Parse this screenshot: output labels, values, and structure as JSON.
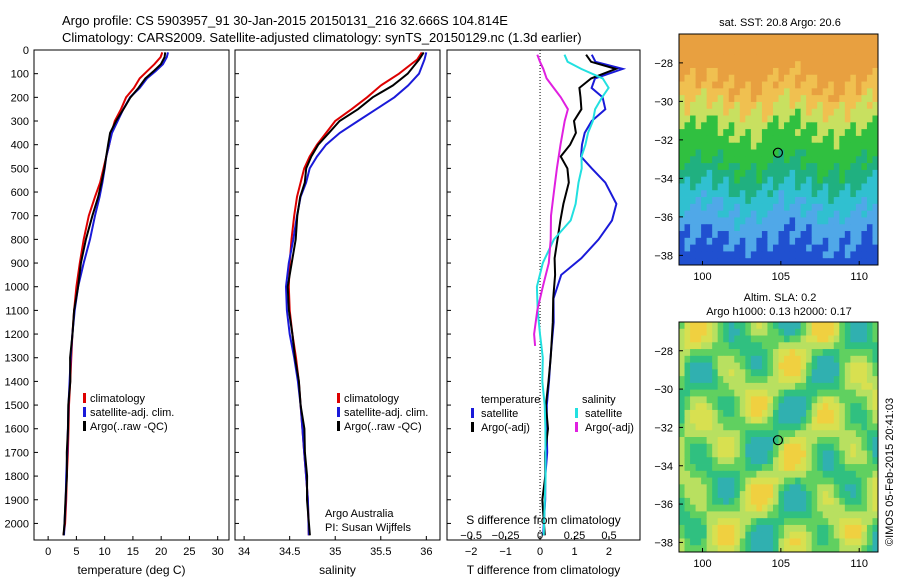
{
  "header": {
    "line1": "Argo profile: CS 5903957_91 30-Jan-2015 20150131_216 32.666S 104.814E",
    "line2": "Climatology: CARS2009. Satellite-adjusted climatology: synTS_20150129.nc (1.3d earlier)"
  },
  "side_stamp": "©IMOS 05-Feb-2015 20:41:03",
  "colors": {
    "climatology": "#dd0000",
    "satellite": "#1a1ad9",
    "argo": "#000000",
    "s_satellite": "#22e0e0",
    "s_argo": "#e020e0"
  },
  "chart_data": [
    {
      "type": "line",
      "id": "temperature",
      "xlabel": "temperature (deg C)",
      "ylabel": "",
      "xlim": [
        -2.5,
        32
      ],
      "ylim": [
        2070,
        0
      ],
      "xticks": [
        "0",
        "5",
        "10",
        "15",
        "20",
        "25",
        "30"
      ],
      "yticks": [
        "0",
        "100",
        "200",
        "300",
        "400",
        "500",
        "600",
        "700",
        "800",
        "900",
        "1000",
        "1100",
        "1200",
        "1300",
        "1400",
        "1500",
        "1600",
        "1700",
        "1800",
        "1900",
        "2000"
      ],
      "legend": [
        "climatology",
        "satellite-adj. clim.",
        "Argo(..raw -QC)"
      ],
      "series": [
        {
          "name": "climatology",
          "color_key": "climatology",
          "x": [
            20.2,
            19.9,
            18.8,
            17.5,
            16.2,
            15.2,
            13.8,
            12.9,
            11.8,
            11.2,
            10.8,
            10.3,
            9.8,
            9.2,
            8.3,
            7.2,
            6.3,
            5.6,
            5.0,
            4.6,
            4.3,
            4.1,
            3.9,
            3.7,
            3.6,
            3.5,
            3.3,
            3.2,
            3.0,
            2.9,
            2.7
          ],
          "depth": [
            10,
            30,
            60,
            90,
            120,
            160,
            200,
            250,
            300,
            350,
            400,
            450,
            500,
            560,
            620,
            700,
            800,
            900,
            1000,
            1100,
            1200,
            1300,
            1400,
            1500,
            1600,
            1700,
            1800,
            1900,
            2000,
            2020,
            2050
          ]
        },
        {
          "name": "satellite-adj. clim.",
          "color_key": "satellite",
          "x": [
            21.2,
            21.0,
            20.3,
            19.0,
            17.5,
            16.2,
            14.5,
            13.3,
            12.3,
            11.3,
            10.8,
            10.3,
            10.0,
            9.6,
            9.1,
            8.3,
            7.4,
            6.3,
            5.3,
            4.7,
            4.3,
            4.0,
            3.8,
            3.6,
            3.5,
            3.4,
            3.2,
            3.1,
            2.9,
            2.8
          ],
          "depth": [
            10,
            30,
            60,
            90,
            120,
            160,
            200,
            250,
            300,
            350,
            400,
            450,
            500,
            560,
            620,
            700,
            800,
            900,
            1000,
            1100,
            1200,
            1300,
            1400,
            1500,
            1600,
            1700,
            1800,
            1900,
            2000,
            2050
          ]
        },
        {
          "name": "Argo(..raw -QC)",
          "color_key": "argo",
          "x": [
            20.8,
            20.6,
            20.0,
            18.5,
            17.3,
            16.0,
            14.6,
            13.2,
            12.1,
            11.0,
            10.6,
            10.2,
            10.0,
            9.5,
            8.8,
            7.8,
            6.7,
            5.9,
            5.2,
            4.6,
            4.3,
            4.0,
            3.8,
            3.6,
            3.5,
            3.4,
            3.2,
            3.1,
            2.9,
            2.8
          ],
          "depth": [
            10,
            30,
            60,
            90,
            120,
            160,
            200,
            250,
            300,
            350,
            400,
            450,
            500,
            560,
            620,
            700,
            800,
            900,
            1000,
            1100,
            1200,
            1300,
            1400,
            1500,
            1600,
            1700,
            1800,
            1900,
            2000,
            2050
          ]
        }
      ]
    },
    {
      "type": "line",
      "id": "salinity",
      "xlabel": "salinity",
      "ylabel": "",
      "xlim": [
        33.9,
        36.15
      ],
      "ylim": [
        2070,
        0
      ],
      "xticks": [
        "34",
        "34.5",
        "35",
        "35.5",
        "36"
      ],
      "legend": [
        "climatology",
        "satellite-adj. clim.",
        "Argo(..raw -QC)"
      ],
      "annotation": [
        "Argo Australia",
        "PI: Susan Wijffels"
      ],
      "series": [
        {
          "name": "climatology",
          "color_key": "climatology",
          "x": [
            35.95,
            35.9,
            35.7,
            35.5,
            35.35,
            35.18,
            35.0,
            34.9,
            34.8,
            34.72,
            34.66,
            34.62,
            34.58,
            34.55,
            34.52,
            34.5,
            34.49,
            34.5,
            34.53,
            34.57,
            34.6,
            34.62,
            34.64,
            34.66,
            34.68,
            34.7,
            34.71
          ],
          "depth": [
            10,
            40,
            100,
            150,
            200,
            250,
            300,
            350,
            400,
            450,
            500,
            560,
            620,
            700,
            800,
            900,
            1000,
            1100,
            1200,
            1300,
            1400,
            1500,
            1600,
            1700,
            1800,
            1900,
            2050
          ]
        },
        {
          "name": "satellite-adj. clim.",
          "color_key": "satellite",
          "x": [
            36.0,
            35.98,
            35.92,
            35.8,
            35.65,
            35.45,
            35.25,
            35.05,
            34.9,
            34.8,
            34.72,
            34.68,
            34.62,
            34.58,
            34.54,
            34.49,
            34.46,
            34.47,
            34.5,
            34.55,
            34.59,
            34.62,
            34.64,
            34.66,
            34.68,
            34.7,
            34.71
          ],
          "depth": [
            10,
            40,
            100,
            150,
            200,
            250,
            300,
            350,
            400,
            450,
            500,
            560,
            620,
            700,
            800,
            900,
            1000,
            1100,
            1200,
            1300,
            1400,
            1500,
            1600,
            1700,
            1800,
            1900,
            2050
          ]
        },
        {
          "name": "Argo(..raw -QC)",
          "color_key": "argo",
          "x": [
            35.98,
            35.92,
            35.8,
            35.62,
            35.42,
            35.25,
            35.05,
            34.92,
            34.82,
            34.74,
            34.68,
            34.66,
            34.62,
            34.59,
            34.56,
            34.52,
            34.48,
            34.5,
            34.52,
            34.56,
            34.6,
            34.63,
            34.65,
            34.67,
            34.69,
            34.7,
            34.71
          ],
          "depth": [
            10,
            40,
            100,
            150,
            200,
            250,
            300,
            350,
            400,
            450,
            500,
            560,
            620,
            700,
            800,
            900,
            1000,
            1100,
            1200,
            1300,
            1400,
            1500,
            1600,
            1700,
            1800,
            1900,
            2050
          ]
        }
      ]
    },
    {
      "type": "line",
      "id": "differences",
      "xlabel": "T difference from climatology",
      "top_xlabel": "S difference from climatology",
      "xlim": [
        -2.7,
        2.9
      ],
      "ylim": [
        2070,
        0
      ],
      "xticks": [
        "-2",
        "-1",
        "0",
        "1",
        "2"
      ],
      "top_xticks": [
        "-0.5",
        "-0.25",
        "0",
        "0.25",
        "0.5"
      ],
      "legend_titles": [
        "temperature",
        "salinity"
      ],
      "legend": [
        "satellite",
        "Argo(-adj)",
        "satellite",
        "Argo(-adj)"
      ],
      "series": [
        {
          "name": "satellite",
          "group": "temperature",
          "color_key": "satellite",
          "x": [
            1.5,
            1.6,
            2.4,
            1.6,
            1.5,
            1.8,
            1.9,
            1.5,
            1.3,
            1.2,
            1.2,
            1.5,
            1.9,
            2.2,
            2.1,
            1.7,
            1.2,
            0.6,
            0.4,
            0.4,
            0.3,
            0.25,
            0.2,
            0.2,
            0.2,
            0.15,
            0.15,
            0.1
          ],
          "depth": [
            20,
            50,
            80,
            120,
            160,
            200,
            250,
            300,
            350,
            400,
            450,
            500,
            560,
            650,
            720,
            800,
            880,
            950,
            1050,
            1150,
            1300,
            1400,
            1500,
            1600,
            1700,
            1800,
            1900,
            2050
          ]
        },
        {
          "name": "Argo(-adj)",
          "group": "temperature",
          "color_key": "argo",
          "x": [
            1.3,
            1.5,
            2.2,
            1.5,
            1.1,
            1.2,
            1.2,
            1.0,
            1.0,
            0.9,
            0.6,
            0.8,
            0.8,
            0.7,
            0.6,
            0.5,
            0.4,
            0.45,
            0.4,
            0.35,
            0.3,
            0.25,
            0.2,
            0.2,
            0.15,
            0.15,
            0.1,
            0.1
          ],
          "depth": [
            20,
            50,
            80,
            120,
            160,
            200,
            250,
            300,
            350,
            400,
            450,
            500,
            560,
            650,
            720,
            800,
            880,
            950,
            1050,
            1150,
            1300,
            1400,
            1500,
            1600,
            1700,
            1800,
            1900,
            2050
          ]
        },
        {
          "name": "satellite",
          "group": "salinity",
          "color_key": "s_satellite",
          "x": [
            0.18,
            0.2,
            0.3,
            0.45,
            0.5,
            0.45,
            0.4,
            0.38,
            0.35,
            0.33,
            0.3,
            0.3,
            0.28,
            0.26,
            0.22,
            0.1,
            0.02,
            -0.02,
            -0.02,
            0.0,
            0.02,
            0.02,
            0.03,
            0.04,
            0.04,
            0.03
          ],
          "depth": [
            20,
            50,
            80,
            120,
            160,
            200,
            250,
            300,
            350,
            400,
            450,
            500,
            560,
            650,
            720,
            800,
            900,
            1000,
            1100,
            1200,
            1300,
            1400,
            1500,
            1600,
            1800,
            2050
          ]
        },
        {
          "name": "Argo(-adj)",
          "group": "salinity",
          "color_key": "s_argo",
          "x": [
            -0.02,
            0.0,
            0.02,
            0.05,
            0.1,
            0.15,
            0.2,
            0.18,
            0.15,
            0.12,
            0.1,
            0.08,
            0.08,
            0.06,
            0.02,
            -0.02,
            -0.04,
            -0.04
          ],
          "depth": [
            20,
            50,
            80,
            120,
            160,
            200,
            250,
            300,
            400,
            500,
            600,
            700,
            800,
            900,
            1000,
            1100,
            1200,
            1250
          ]
        }
      ]
    },
    {
      "type": "heatmap",
      "id": "sst_map",
      "title": "sat. SST: 20.8 Argo: 20.6",
      "xlim": [
        98.5,
        111.2
      ],
      "ylim": [
        -38.5,
        -26.5
      ],
      "xticks": [
        "100",
        "105",
        "110"
      ],
      "yticks": [
        "-28",
        "-30",
        "-32",
        "-34",
        "-36",
        "-38"
      ],
      "marker": {
        "lon": 104.814,
        "lat": -32.666
      }
    },
    {
      "type": "heatmap",
      "id": "sla_map",
      "title": "Altim. SLA: 0.2",
      "subtitle": "Argo h1000: 0.13 h2000: 0.17",
      "xlim": [
        98.5,
        111.2
      ],
      "ylim": [
        -38.5,
        -26.5
      ],
      "xticks": [
        "100",
        "105",
        "110"
      ],
      "yticks": [
        "-28",
        "-30",
        "-32",
        "-34",
        "-36",
        "-38"
      ],
      "marker": {
        "lon": 104.814,
        "lat": -32.666
      }
    }
  ]
}
